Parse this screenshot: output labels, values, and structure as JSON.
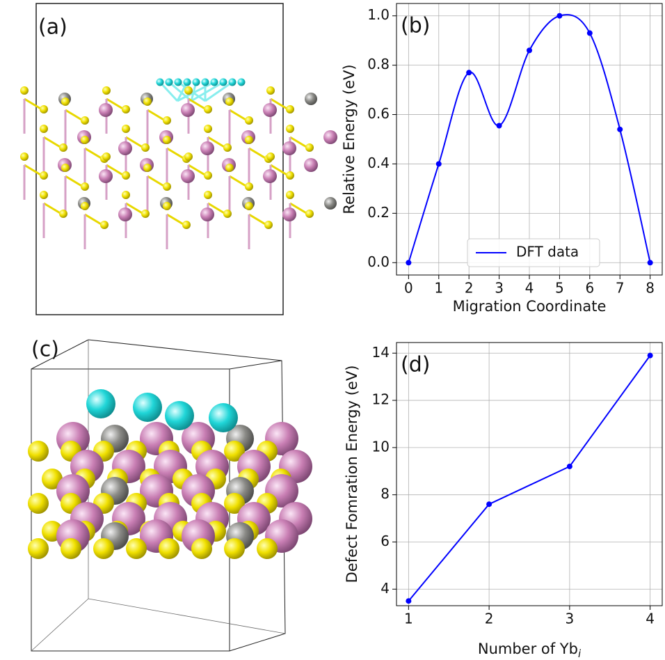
{
  "panels": [
    {
      "label": "(a)"
    },
    {
      "label": "(c)"
    }
  ],
  "chart_data": [
    {
      "type": "line",
      "annotation": "(b)",
      "smooth": true,
      "markers": true,
      "grid": true,
      "legend": "lower center",
      "x_label": "Migration Coordinate",
      "y_label": "Relative Energy (eV)",
      "x": [
        0,
        1,
        2,
        3,
        4,
        5,
        6,
        7,
        8
      ],
      "series": [
        {
          "name": "DFT data",
          "color": "#0000ff",
          "values": [
            0.0,
            0.4,
            0.77,
            0.555,
            0.86,
            1.0,
            0.93,
            0.54,
            0.0
          ]
        }
      ],
      "xlim": [
        -0.4,
        8.4
      ],
      "ylim": [
        -0.05,
        1.05
      ],
      "xticks": [
        0,
        1,
        2,
        3,
        4,
        5,
        6,
        7,
        8
      ],
      "yticks": [
        {
          "value": 0,
          "label": "0.0"
        },
        0.2,
        0.4,
        0.6,
        0.8,
        {
          "value": 1,
          "label": "1.0"
        }
      ]
    },
    {
      "type": "line",
      "annotation": "(d)",
      "smooth": false,
      "markers": true,
      "grid": true,
      "x_label": "Number of Yb",
      "x_label_subscript": "i",
      "y_label": "Defect Fomration Energy (eV)",
      "x": [
        1,
        2,
        3,
        4
      ],
      "series": [
        {
          "color": "#0000ff",
          "values": [
            3.5,
            7.6,
            9.2,
            13.9
          ]
        }
      ],
      "xlim": [
        0.85,
        4.15
      ],
      "ylim": [
        3.3,
        14.45
      ],
      "xticks": [
        1,
        2,
        3,
        4
      ],
      "yticks": [
        4,
        6,
        8,
        10,
        12,
        14
      ]
    }
  ]
}
